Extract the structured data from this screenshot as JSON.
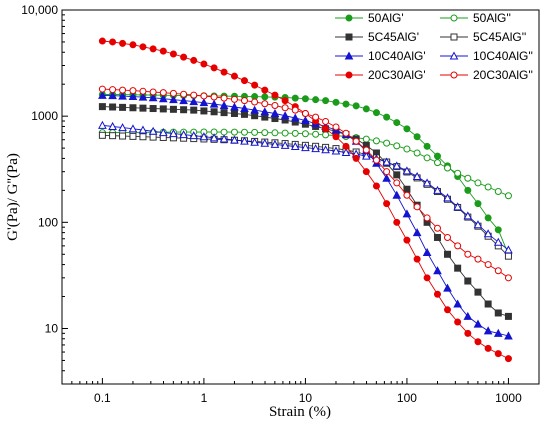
{
  "chart_data": {
    "type": "line",
    "title": "",
    "xlabel": "Strain (%)",
    "ylabel": "G'(Pa)/ G''(Pa)",
    "xscale": "log",
    "yscale": "log",
    "xlim": [
      0.04,
      2000
    ],
    "ylim": [
      3,
      10000
    ],
    "xticks": [
      0.1,
      1,
      10,
      100,
      1000
    ],
    "xtick_labels": [
      "0.1",
      "1",
      "10",
      "100",
      "1000"
    ],
    "yticks": [
      10,
      100,
      1000,
      10000
    ],
    "ytick_labels": [
      "10",
      "100",
      "1000",
      "10,000"
    ],
    "grid": false,
    "legend_position": "top-right",
    "x": [
      0.1,
      0.126,
      0.158,
      0.2,
      0.251,
      0.316,
      0.398,
      0.501,
      0.631,
      0.794,
      1,
      1.26,
      1.58,
      2,
      2.51,
      3.16,
      3.98,
      5.01,
      6.31,
      7.94,
      10,
      12.6,
      15.8,
      20,
      25.1,
      31.6,
      39.8,
      50.1,
      63.1,
      79.4,
      100,
      126,
      158,
      200,
      251,
      316,
      398,
      501,
      631,
      794,
      1000
    ],
    "series": [
      {
        "name": "50AlG'",
        "color": "#1a9c1a",
        "marker": "circle",
        "filled": true,
        "values": [
          1600,
          1600,
          1595,
          1590,
          1585,
          1580,
          1575,
          1570,
          1565,
          1560,
          1555,
          1550,
          1545,
          1540,
          1535,
          1530,
          1520,
          1510,
          1500,
          1480,
          1460,
          1430,
          1400,
          1350,
          1300,
          1250,
          1170,
          1080,
          980,
          870,
          760,
          640,
          520,
          420,
          340,
          270,
          200,
          150,
          110,
          85,
          50
        ]
      },
      {
        "name": "50AlG''",
        "color": "#1a9c1a",
        "marker": "circle",
        "filled": false,
        "values": [
          700,
          700,
          702,
          703,
          704,
          705,
          706,
          707,
          708,
          708,
          709,
          709,
          708,
          707,
          705,
          703,
          700,
          697,
          693,
          688,
          683,
          675,
          666,
          656,
          643,
          628,
          608,
          585,
          557,
          525,
          490,
          450,
          405,
          365,
          325,
          290,
          260,
          235,
          215,
          195,
          178
        ]
      },
      {
        "name": "5C45AlG'",
        "color": "#333333",
        "marker": "square",
        "filled": true,
        "values": [
          1230,
          1220,
          1210,
          1200,
          1190,
          1180,
          1170,
          1160,
          1150,
          1140,
          1120,
          1100,
          1080,
          1060,
          1040,
          1010,
          980,
          950,
          920,
          880,
          840,
          800,
          760,
          720,
          670,
          610,
          530,
          450,
          360,
          280,
          205,
          145,
          100,
          72,
          50,
          37,
          28,
          22,
          17,
          14,
          13
        ]
      },
      {
        "name": "5C45AlG''",
        "color": "#333333",
        "marker": "square",
        "filled": false,
        "values": [
          660,
          655,
          650,
          645,
          640,
          635,
          630,
          625,
          620,
          615,
          610,
          605,
          600,
          593,
          586,
          578,
          570,
          561,
          552,
          542,
          531,
          520,
          508,
          495,
          480,
          460,
          435,
          405,
          370,
          335,
          298,
          262,
          228,
          195,
          165,
          138,
          112,
          92,
          74,
          60,
          48
        ]
      },
      {
        "name": "10C40AlG'",
        "color": "#1414d0",
        "marker": "triangle",
        "filled": true,
        "values": [
          1570,
          1560,
          1545,
          1530,
          1510,
          1490,
          1460,
          1430,
          1400,
          1370,
          1340,
          1300,
          1260,
          1220,
          1180,
          1140,
          1100,
          1060,
          1010,
          960,
          910,
          850,
          800,
          740,
          670,
          580,
          470,
          360,
          260,
          180,
          120,
          80,
          52,
          35,
          24,
          17,
          13,
          11,
          9.5,
          9,
          8.5
        ]
      },
      {
        "name": "10C40AlG''",
        "color": "#1414d0",
        "marker": "triangle",
        "filled": false,
        "values": [
          820,
          800,
          780,
          760,
          740,
          720,
          700,
          685,
          670,
          655,
          640,
          625,
          610,
          596,
          582,
          568,
          555,
          542,
          530,
          518,
          506,
          494,
          482,
          470,
          455,
          440,
          420,
          397,
          370,
          340,
          305,
          270,
          235,
          200,
          170,
          140,
          115,
          95,
          78,
          65,
          55
        ]
      },
      {
        "name": "20C30AlG'",
        "color": "#e60000",
        "marker": "circle",
        "filled": true,
        "values": [
          5100,
          5000,
          4850,
          4700,
          4500,
          4300,
          4100,
          3850,
          3600,
          3350,
          3100,
          2850,
          2600,
          2380,
          2160,
          1960,
          1760,
          1580,
          1400,
          1230,
          1060,
          900,
          760,
          640,
          520,
          400,
          300,
          220,
          150,
          100,
          68,
          45,
          30,
          21,
          15,
          11.5,
          9,
          7.5,
          6.5,
          5.8,
          5.2
        ]
      },
      {
        "name": "20C30AlG''",
        "color": "#e60000",
        "marker": "circle",
        "filled": false,
        "values": [
          1800,
          1780,
          1760,
          1740,
          1715,
          1690,
          1665,
          1640,
          1610,
          1580,
          1550,
          1515,
          1480,
          1440,
          1400,
          1360,
          1310,
          1260,
          1200,
          1140,
          1060,
          980,
          890,
          790,
          690,
          580,
          480,
          385,
          300,
          235,
          180,
          140,
          110,
          88,
          72,
          60,
          50,
          45,
          40,
          35,
          30
        ]
      }
    ]
  }
}
